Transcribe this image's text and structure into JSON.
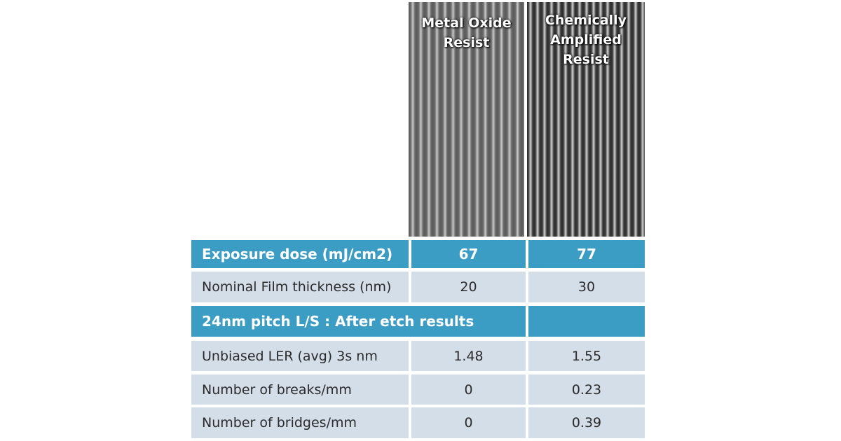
{
  "images": [
    {
      "label": "Metal Oxide Resist"
    },
    {
      "label": "Chemically Amplified Resist"
    }
  ],
  "table": {
    "section": "24nm pitch L/S : After etch results",
    "rows": [
      [
        "Exposure dose (mJ/cm2)",
        "67",
        "77"
      ],
      [
        "Nominal Film thickness (nm)",
        "20",
        "30"
      ],
      [
        "Unbiased LER (avg) 3s nm",
        "1.48",
        "1.55"
      ],
      [
        "Number of breaks/mm",
        "0",
        "0.23"
      ],
      [
        "Number of bridges/mm",
        "0",
        "0.39"
      ]
    ]
  }
}
